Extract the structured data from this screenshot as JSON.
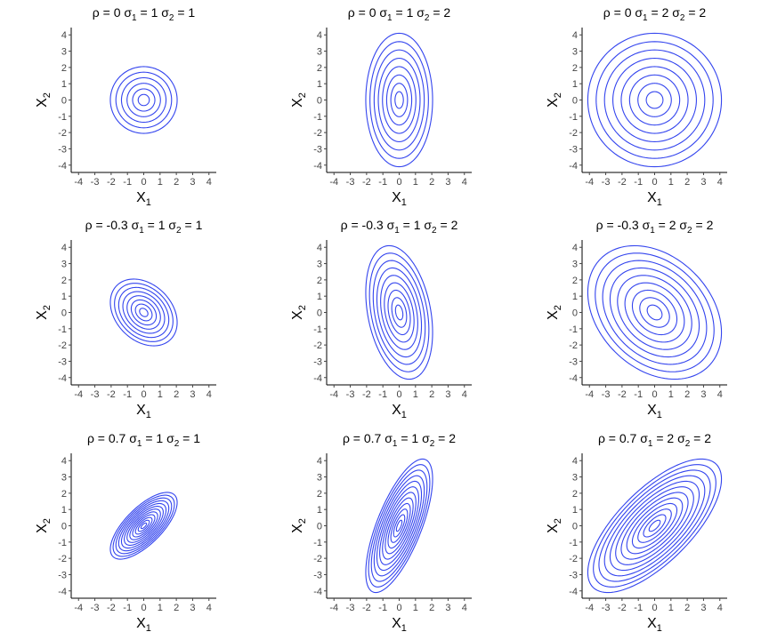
{
  "contour_color": "#3344ee",
  "chart_data": [
    {
      "type": "contour",
      "title_parts": {
        "rho": "ρ = 0",
        "s1_sym": "σ",
        "s1_sub": "1",
        "s1_val": " = 1",
        "s2_sym": "σ",
        "s2_sub": "2",
        "s2_val": " = 1"
      },
      "rho": 0,
      "sigma1": 1,
      "sigma2": 1,
      "levels": 6,
      "xlabel": "X",
      "xlabel_sub": "1",
      "ylabel": "X",
      "ylabel_sub": "2",
      "xlim": [
        -4,
        4
      ],
      "ylim": [
        -4,
        4
      ],
      "xticks": [
        -4,
        -3,
        -2,
        -1,
        0,
        1,
        2,
        3,
        4
      ],
      "yticks": [
        -4,
        -3,
        -2,
        -1,
        0,
        1,
        2,
        3,
        4
      ]
    },
    {
      "type": "contour",
      "title_parts": {
        "rho": "ρ = 0",
        "s1_sym": "σ",
        "s1_sub": "1",
        "s1_val": " = 1",
        "s2_sym": "σ",
        "s2_sub": "2",
        "s2_val": " = 2"
      },
      "rho": 0,
      "sigma1": 1,
      "sigma2": 2,
      "levels": 8,
      "xlabel": "X",
      "xlabel_sub": "1",
      "ylabel": "X",
      "ylabel_sub": "2",
      "xlim": [
        -4,
        4
      ],
      "ylim": [
        -4,
        4
      ],
      "xticks": [
        -4,
        -3,
        -2,
        -1,
        0,
        1,
        2,
        3,
        4
      ],
      "yticks": [
        -4,
        -3,
        -2,
        -1,
        0,
        1,
        2,
        3,
        4
      ]
    },
    {
      "type": "contour",
      "title_parts": {
        "rho": "ρ = 0",
        "s1_sym": "σ",
        "s1_sub": "1",
        "s1_val": " = 2",
        "s2_sym": "σ",
        "s2_sub": "2",
        "s2_val": " = 2"
      },
      "rho": 0,
      "sigma1": 2,
      "sigma2": 2,
      "levels": 8,
      "xlabel": "X",
      "xlabel_sub": "1",
      "ylabel": "X",
      "ylabel_sub": "2",
      "xlim": [
        -4,
        4
      ],
      "ylim": [
        -4,
        4
      ],
      "xticks": [
        -4,
        -3,
        -2,
        -1,
        0,
        1,
        2,
        3,
        4
      ],
      "yticks": [
        -4,
        -3,
        -2,
        -1,
        0,
        1,
        2,
        3,
        4
      ]
    },
    {
      "type": "contour",
      "title_parts": {
        "rho": "ρ = -0.3",
        "s1_sym": "σ",
        "s1_sub": "1",
        "s1_val": " = 1",
        "s2_sym": "σ",
        "s2_sub": "2",
        "s2_val": " = 1"
      },
      "rho": -0.3,
      "sigma1": 1,
      "sigma2": 1,
      "levels": 8,
      "xlabel": "X",
      "xlabel_sub": "1",
      "ylabel": "X",
      "ylabel_sub": "2",
      "xlim": [
        -4,
        4
      ],
      "ylim": [
        -4,
        4
      ],
      "xticks": [
        -4,
        -3,
        -2,
        -1,
        0,
        1,
        2,
        3,
        4
      ],
      "yticks": [
        -4,
        -3,
        -2,
        -1,
        0,
        1,
        2,
        3,
        4
      ]
    },
    {
      "type": "contour",
      "title_parts": {
        "rho": "ρ = -0.3",
        "s1_sym": "σ",
        "s1_sub": "1",
        "s1_val": " = 1",
        "s2_sym": "σ",
        "s2_sub": "2",
        "s2_val": " = 2"
      },
      "rho": -0.3,
      "sigma1": 1,
      "sigma2": 2,
      "levels": 9,
      "xlabel": "X",
      "xlabel_sub": "1",
      "ylabel": "X",
      "ylabel_sub": "2",
      "xlim": [
        -4,
        4
      ],
      "ylim": [
        -4,
        4
      ],
      "xticks": [
        -4,
        -3,
        -2,
        -1,
        0,
        1,
        2,
        3,
        4
      ],
      "yticks": [
        -4,
        -3,
        -2,
        -1,
        0,
        1,
        2,
        3,
        4
      ]
    },
    {
      "type": "contour",
      "title_parts": {
        "rho": "ρ = -0.3",
        "s1_sym": "σ",
        "s1_sub": "1",
        "s1_val": " = 2",
        "s2_sym": "σ",
        "s2_sub": "2",
        "s2_val": " = 2"
      },
      "rho": -0.3,
      "sigma1": 2,
      "sigma2": 2,
      "levels": 9,
      "xlabel": "X",
      "xlabel_sub": "1",
      "ylabel": "X",
      "ylabel_sub": "2",
      "xlim": [
        -4,
        4
      ],
      "ylim": [
        -4,
        4
      ],
      "xticks": [
        -4,
        -3,
        -2,
        -1,
        0,
        1,
        2,
        3,
        4
      ],
      "yticks": [
        -4,
        -3,
        -2,
        -1,
        0,
        1,
        2,
        3,
        4
      ]
    },
    {
      "type": "contour",
      "title_parts": {
        "rho": "ρ = 0.7",
        "s1_sym": "σ",
        "s1_sub": "1",
        "s1_val": " = 1",
        "s2_sym": "σ",
        "s2_sub": "2",
        "s2_val": " = 1"
      },
      "rho": 0.7,
      "sigma1": 1,
      "sigma2": 1,
      "levels": 12,
      "xlabel": "X",
      "xlabel_sub": "1",
      "ylabel": "X",
      "ylabel_sub": "2",
      "xlim": [
        -4,
        4
      ],
      "ylim": [
        -4,
        4
      ],
      "xticks": [
        -4,
        -3,
        -2,
        -1,
        0,
        1,
        2,
        3,
        4
      ],
      "yticks": [
        -4,
        -3,
        -2,
        -1,
        0,
        1,
        2,
        3,
        4
      ]
    },
    {
      "type": "contour",
      "title_parts": {
        "rho": "ρ = 0.7",
        "s1_sym": "σ",
        "s1_sub": "1",
        "s1_val": " = 1",
        "s2_sym": "σ",
        "s2_sub": "2",
        "s2_val": " = 2"
      },
      "rho": 0.7,
      "sigma1": 1,
      "sigma2": 2,
      "levels": 12,
      "xlabel": "X",
      "xlabel_sub": "1",
      "ylabel": "X",
      "ylabel_sub": "2",
      "xlim": [
        -4,
        4
      ],
      "ylim": [
        -4,
        4
      ],
      "xticks": [
        -4,
        -3,
        -2,
        -1,
        0,
        1,
        2,
        3,
        4
      ],
      "yticks": [
        -4,
        -3,
        -2,
        -1,
        0,
        1,
        2,
        3,
        4
      ]
    },
    {
      "type": "contour",
      "title_parts": {
        "rho": "ρ = 0.7",
        "s1_sym": "σ",
        "s1_sub": "1",
        "s1_val": " = 2",
        "s2_sym": "σ",
        "s2_sub": "2",
        "s2_val": " = 2"
      },
      "rho": 0.7,
      "sigma1": 2,
      "sigma2": 2,
      "levels": 12,
      "xlabel": "X",
      "xlabel_sub": "1",
      "ylabel": "X",
      "ylabel_sub": "2",
      "xlim": [
        -4,
        4
      ],
      "ylim": [
        -4,
        4
      ],
      "xticks": [
        -4,
        -3,
        -2,
        -1,
        0,
        1,
        2,
        3,
        4
      ],
      "yticks": [
        -4,
        -3,
        -2,
        -1,
        0,
        1,
        2,
        3,
        4
      ]
    }
  ]
}
